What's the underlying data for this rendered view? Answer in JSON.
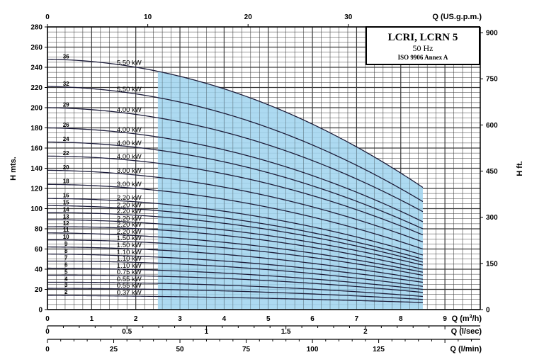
{
  "chart_data": {
    "type": "line",
    "title_lines": [
      "LCRI, LCRN 5",
      "50 Hz",
      "ISO 9906 Annex A"
    ],
    "ylabel_left": "H mts.",
    "ylabel_right": "H ft.",
    "x_axis_top": {
      "label": "Q (US.g.p.m.)",
      "ticks": [
        "0",
        "10",
        "20",
        "30"
      ],
      "values": [
        0,
        10,
        20,
        30
      ]
    },
    "x_axis_main": {
      "label": "Q (m³/h)",
      "label_prefix": "Q (m",
      "label_sup": "3",
      "label_suffix": "/h)",
      "ticks": [
        "0",
        "1",
        "2",
        "3",
        "4",
        "5",
        "6",
        "7",
        "8",
        "9"
      ],
      "values": [
        0,
        1,
        2,
        3,
        4,
        5,
        6,
        7,
        8,
        9
      ],
      "xlim": [
        0,
        9.8
      ]
    },
    "x_axis_lsec": {
      "label": "Q (l/sec)",
      "ticks": [
        "0",
        "0.5",
        "1",
        "1.5",
        "2"
      ],
      "values": [
        0,
        0.5,
        1,
        1.5,
        2
      ]
    },
    "x_axis_lmin": {
      "label": "Q (l/min)",
      "ticks": [
        "0",
        "25",
        "50",
        "75",
        "100",
        "125"
      ],
      "values": [
        0,
        25,
        50,
        75,
        100,
        125
      ]
    },
    "y_axis_left": {
      "ticks": [
        "0",
        "20",
        "40",
        "60",
        "80",
        "100",
        "120",
        "140",
        "160",
        "180",
        "200",
        "220",
        "240",
        "260",
        "280"
      ],
      "values": [
        0,
        20,
        40,
        60,
        80,
        100,
        120,
        140,
        160,
        180,
        200,
        220,
        240,
        260,
        280
      ],
      "ylim": [
        0,
        280
      ]
    },
    "y_axis_right": {
      "ticks": [
        "0",
        "150",
        "300",
        "450",
        "600",
        "750",
        "900"
      ],
      "values": [
        0,
        150,
        300,
        450,
        600,
        750,
        900
      ]
    },
    "grid": true,
    "operating_range_m3h": [
      2.5,
      8.5
    ],
    "curve_q_m3h": [
      0,
      2.5,
      8.5
    ],
    "curves": [
      {
        "stages": "36",
        "power": "5.50 kW",
        "h": [
          248,
          236,
          121
        ]
      },
      {
        "stages": "32",
        "power": "5.50 kW",
        "h": [
          221,
          210,
          107
        ]
      },
      {
        "stages": "29",
        "power": "4.00 kW",
        "h": [
          200,
          190,
          97
        ]
      },
      {
        "stages": "26",
        "power": "4.00 kW",
        "h": [
          180,
          171,
          87
        ]
      },
      {
        "stages": "24",
        "power": "4.00 kW",
        "h": [
          166,
          158,
          80
        ]
      },
      {
        "stages": "22",
        "power": "4.00 kW",
        "h": [
          152,
          145,
          74
        ]
      },
      {
        "stages": "20",
        "power": "3.00 kW",
        "h": [
          138,
          131,
          67
        ]
      },
      {
        "stages": "18",
        "power": "3.00 kW",
        "h": [
          124,
          118,
          60
        ]
      },
      {
        "stages": "16",
        "power": "2.20 kW",
        "h": [
          110,
          105,
          54
        ]
      },
      {
        "stages": "15",
        "power": "2.20 kW",
        "h": [
          103,
          98,
          50
        ]
      },
      {
        "stages": "14",
        "power": "2.20 kW",
        "h": [
          96,
          92,
          47
        ]
      },
      {
        "stages": "13",
        "power": "2.20 kW",
        "h": [
          89,
          85,
          44
        ]
      },
      {
        "stages": "12",
        "power": "2.20 kW",
        "h": [
          82,
          79,
          40
        ]
      },
      {
        "stages": "11",
        "power": "2.20 kW",
        "h": [
          76,
          72,
          37
        ]
      },
      {
        "stages": "10",
        "power": "1.50 kW",
        "h": [
          69,
          66,
          34
        ]
      },
      {
        "stages": "9",
        "power": "1.50 kW",
        "h": [
          62,
          59,
          30
        ]
      },
      {
        "stages": "8",
        "power": "1.10 kW",
        "h": [
          55,
          52,
          27
        ]
      },
      {
        "stages": "7",
        "power": "1.10 kW",
        "h": [
          48,
          46,
          23
        ]
      },
      {
        "stages": "6",
        "power": "1.10 kW",
        "h": [
          41,
          39,
          20
        ]
      },
      {
        "stages": "5",
        "power": "0.75 kW",
        "h": [
          34,
          33,
          17
        ]
      },
      {
        "stages": "4",
        "power": "0.55 kW",
        "h": [
          27,
          26,
          13
        ]
      },
      {
        "stages": "3",
        "power": "0.55 kW",
        "h": [
          21,
          20,
          10
        ]
      },
      {
        "stages": "2",
        "power": "0.37 kW",
        "h": [
          14,
          13,
          7
        ]
      }
    ],
    "colors": {
      "operating_fill": "#9fd3ee",
      "curve": "#1d1d3a",
      "grid": "#3a3a3a"
    }
  }
}
